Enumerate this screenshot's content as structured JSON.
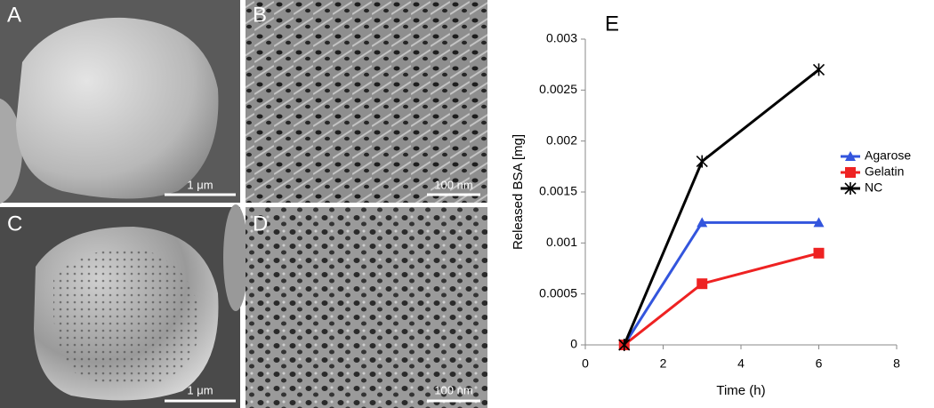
{
  "panels": [
    {
      "label": "A",
      "scale": "1 μm"
    },
    {
      "label": "B",
      "scale": "100 nm"
    },
    {
      "label": "C",
      "scale": "1 μm"
    },
    {
      "label": "D",
      "scale": "100 nm"
    }
  ],
  "chart_data": {
    "type": "line",
    "panel_label": "E",
    "x_label": "Time (h)",
    "y_label": "Released BSA [mg]",
    "x": [
      1,
      3,
      6
    ],
    "series": [
      {
        "name": "Agarose",
        "color": "#3355dd",
        "marker": "triangle",
        "values": [
          0,
          0.0012,
          0.0012
        ]
      },
      {
        "name": "Gelatin",
        "color": "#ee2222",
        "marker": "square",
        "values": [
          0,
          0.0006,
          0.0009
        ]
      },
      {
        "name": "NC",
        "color": "#000000",
        "marker": "star",
        "values": [
          0,
          0.0018,
          0.0027
        ]
      }
    ],
    "xlim": [
      0,
      8
    ],
    "xticks": [
      0,
      2,
      4,
      6,
      8
    ],
    "ylim": [
      0,
      0.003
    ],
    "yticks": [
      0,
      0.0005,
      0.001,
      0.0015,
      0.002,
      0.0025,
      0.003
    ],
    "legend": "right"
  }
}
